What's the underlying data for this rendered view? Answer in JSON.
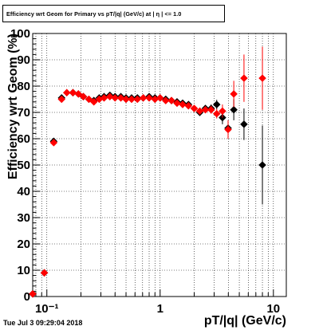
{
  "chart_data": {
    "type": "scatter",
    "title": "Efficiency wrt Geom for Primary vs pT/|q| (GeV/c) at | η | <= 1.0",
    "xlabel": "pT/|q| (GeV/c)",
    "ylabel": "Efficiency wrt Geom (%)",
    "x_scale": "log",
    "xlim": [
      0.075,
      13
    ],
    "ylim": [
      0,
      100
    ],
    "grid": true,
    "x_ticks": [
      {
        "value": 0.1,
        "label": "10⁻¹"
      },
      {
        "value": 1,
        "label": "1"
      },
      {
        "value": 10,
        "label": "10"
      }
    ],
    "y_ticks": [
      0,
      10,
      20,
      30,
      40,
      50,
      60,
      70,
      80,
      90,
      100
    ],
    "series": [
      {
        "color": "#000000",
        "marker": "diamond",
        "points": [
          {
            "x": 0.075,
            "y": 1.0,
            "yerr": 0.5
          },
          {
            "x": 0.095,
            "y": 9.0,
            "yerr": 0.8
          },
          {
            "x": 0.115,
            "y": 59.0,
            "yerr": 1.0
          },
          {
            "x": 0.135,
            "y": 75.5,
            "yerr": 0.8
          },
          {
            "x": 0.15,
            "y": 77.5,
            "yerr": 0.6
          },
          {
            "x": 0.17,
            "y": 77.5,
            "yerr": 0.6
          },
          {
            "x": 0.19,
            "y": 77.0,
            "yerr": 0.5
          },
          {
            "x": 0.21,
            "y": 76.0,
            "yerr": 0.5
          },
          {
            "x": 0.235,
            "y": 75.0,
            "yerr": 0.5
          },
          {
            "x": 0.26,
            "y": 74.5,
            "yerr": 0.5
          },
          {
            "x": 0.29,
            "y": 75.5,
            "yerr": 0.5
          },
          {
            "x": 0.32,
            "y": 76.0,
            "yerr": 0.5
          },
          {
            "x": 0.36,
            "y": 76.5,
            "yerr": 0.5
          },
          {
            "x": 0.4,
            "y": 76.0,
            "yerr": 0.5
          },
          {
            "x": 0.45,
            "y": 76.0,
            "yerr": 0.5
          },
          {
            "x": 0.5,
            "y": 75.5,
            "yerr": 0.5
          },
          {
            "x": 0.56,
            "y": 75.5,
            "yerr": 0.5
          },
          {
            "x": 0.63,
            "y": 75.5,
            "yerr": 0.5
          },
          {
            "x": 0.71,
            "y": 75.5,
            "yerr": 0.5
          },
          {
            "x": 0.8,
            "y": 76.0,
            "yerr": 0.5
          },
          {
            "x": 0.9,
            "y": 75.5,
            "yerr": 0.5
          },
          {
            "x": 1.0,
            "y": 75.5,
            "yerr": 0.6
          },
          {
            "x": 1.12,
            "y": 75.0,
            "yerr": 0.6
          },
          {
            "x": 1.26,
            "y": 74.5,
            "yerr": 0.7
          },
          {
            "x": 1.41,
            "y": 74.0,
            "yerr": 0.7
          },
          {
            "x": 1.58,
            "y": 73.5,
            "yerr": 0.8
          },
          {
            "x": 1.78,
            "y": 73.0,
            "yerr": 0.8
          },
          {
            "x": 2.0,
            "y": 71.5,
            "yerr": 1.0
          },
          {
            "x": 2.24,
            "y": 70.0,
            "yerr": 1.0
          },
          {
            "x": 2.51,
            "y": 71.5,
            "yerr": 1.2
          },
          {
            "x": 2.82,
            "y": 71.5,
            "yerr": 1.5
          },
          {
            "x": 3.16,
            "y": 73.0,
            "yerr": 1.8
          },
          {
            "x": 3.55,
            "y": 68.0,
            "yerr": 2.5
          },
          {
            "x": 3.98,
            "y": 64.0,
            "yerr": 3.0
          },
          {
            "x": 4.47,
            "y": 71.0,
            "yerr": 4.0
          },
          {
            "x": 5.5,
            "y": 65.5,
            "yerr": 6.0
          },
          {
            "x": 8.0,
            "y": 50.0,
            "yerr": 15.0
          }
        ]
      },
      {
        "color": "#ff0000",
        "marker": "diamond",
        "points": [
          {
            "x": 0.075,
            "y": 1.0,
            "yerr": 0.5
          },
          {
            "x": 0.095,
            "y": 9.0,
            "yerr": 0.8
          },
          {
            "x": 0.115,
            "y": 58.5,
            "yerr": 1.0
          },
          {
            "x": 0.135,
            "y": 75.0,
            "yerr": 0.8
          },
          {
            "x": 0.15,
            "y": 77.5,
            "yerr": 0.6
          },
          {
            "x": 0.17,
            "y": 77.5,
            "yerr": 0.6
          },
          {
            "x": 0.19,
            "y": 77.0,
            "yerr": 0.5
          },
          {
            "x": 0.21,
            "y": 76.0,
            "yerr": 0.5
          },
          {
            "x": 0.235,
            "y": 75.0,
            "yerr": 0.5
          },
          {
            "x": 0.26,
            "y": 74.0,
            "yerr": 0.5
          },
          {
            "x": 0.29,
            "y": 75.0,
            "yerr": 0.5
          },
          {
            "x": 0.32,
            "y": 75.5,
            "yerr": 0.5
          },
          {
            "x": 0.36,
            "y": 76.0,
            "yerr": 0.5
          },
          {
            "x": 0.4,
            "y": 75.5,
            "yerr": 0.5
          },
          {
            "x": 0.45,
            "y": 75.5,
            "yerr": 0.5
          },
          {
            "x": 0.5,
            "y": 75.0,
            "yerr": 0.5
          },
          {
            "x": 0.56,
            "y": 75.0,
            "yerr": 0.5
          },
          {
            "x": 0.63,
            "y": 75.0,
            "yerr": 0.5
          },
          {
            "x": 0.71,
            "y": 75.5,
            "yerr": 0.5
          },
          {
            "x": 0.8,
            "y": 75.5,
            "yerr": 0.5
          },
          {
            "x": 0.9,
            "y": 75.0,
            "yerr": 0.5
          },
          {
            "x": 1.0,
            "y": 75.5,
            "yerr": 0.6
          },
          {
            "x": 1.12,
            "y": 74.5,
            "yerr": 0.6
          },
          {
            "x": 1.26,
            "y": 74.5,
            "yerr": 0.7
          },
          {
            "x": 1.41,
            "y": 73.5,
            "yerr": 0.7
          },
          {
            "x": 1.58,
            "y": 73.0,
            "yerr": 0.8
          },
          {
            "x": 1.78,
            "y": 72.5,
            "yerr": 0.8
          },
          {
            "x": 2.0,
            "y": 71.5,
            "yerr": 1.0
          },
          {
            "x": 2.24,
            "y": 70.5,
            "yerr": 1.0
          },
          {
            "x": 2.51,
            "y": 71.0,
            "yerr": 1.2
          },
          {
            "x": 2.82,
            "y": 71.0,
            "yerr": 1.5
          },
          {
            "x": 3.16,
            "y": 69.5,
            "yerr": 1.8
          },
          {
            "x": 3.55,
            "y": 70.5,
            "yerr": 2.5
          },
          {
            "x": 3.98,
            "y": 63.5,
            "yerr": 3.5
          },
          {
            "x": 4.47,
            "y": 77.0,
            "yerr": 5.0
          },
          {
            "x": 5.5,
            "y": 83.0,
            "yerr": 9.0
          },
          {
            "x": 8.0,
            "y": 83.0,
            "yerr": 12.0
          }
        ]
      }
    ]
  },
  "footer": {
    "timestamp": "Tue Jul  3 09:29:04 2018"
  }
}
